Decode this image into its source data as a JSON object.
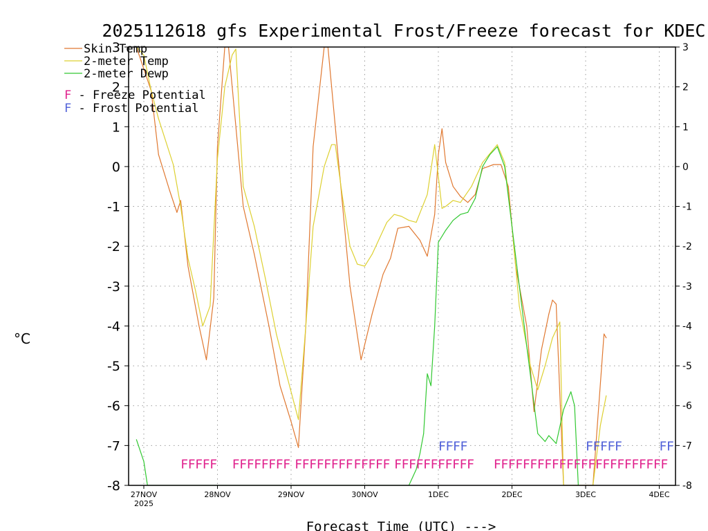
{
  "title": "2025112618 gfs Experimental Frost/Freeze forecast for KDEC",
  "chart_data": {
    "type": "line",
    "title": "2025112618 gfs Experimental Frost/Freeze forecast for KDEC",
    "ylabel": "°C",
    "xlabel": "Forecast Time (UTC) --->",
    "ylim": [
      -8,
      3
    ],
    "xlim": [
      -0.1,
      7.2
    ],
    "x_unit": "days since 27NOV 00Z",
    "y_ticks": [
      "-8",
      "-7",
      "-6",
      "-5",
      "-4",
      "-3",
      "-2",
      "-1",
      "0",
      "1",
      "2",
      "3"
    ],
    "x_ticks": [
      {
        "x": 0,
        "label": "27NOV",
        "sublabel": "2025"
      },
      {
        "x": 1,
        "label": "28NOV",
        "sublabel": ""
      },
      {
        "x": 2,
        "label": "29NOV",
        "sublabel": ""
      },
      {
        "x": 3,
        "label": "30NOV",
        "sublabel": ""
      },
      {
        "x": 4,
        "label": "1DEC",
        "sublabel": ""
      },
      {
        "x": 5,
        "label": "2DEC",
        "sublabel": ""
      },
      {
        "x": 6,
        "label": "3DEC",
        "sublabel": ""
      },
      {
        "x": 7,
        "label": "4DEC",
        "sublabel": ""
      }
    ],
    "series": [
      {
        "name": "Skin Temp",
        "color": "#e07830",
        "points": [
          [
            -0.1,
            3.0
          ],
          [
            0.1,
            1.9
          ],
          [
            0.2,
            0.3
          ],
          [
            0.35,
            -0.6
          ],
          [
            0.45,
            -1.15
          ],
          [
            0.5,
            -0.85
          ],
          [
            0.6,
            -2.5
          ],
          [
            0.75,
            -4.0
          ],
          [
            0.85,
            -4.85
          ],
          [
            0.95,
            -3.3
          ],
          [
            1.0,
            0.5
          ],
          [
            1.1,
            3.0
          ],
          [
            1.15,
            3.0
          ],
          [
            1.35,
            -1.0
          ],
          [
            1.5,
            -2.2
          ],
          [
            1.7,
            -4.0
          ],
          [
            1.85,
            -5.5
          ],
          [
            2.0,
            -6.4
          ],
          [
            2.1,
            -7.05
          ],
          [
            2.2,
            -4.0
          ],
          [
            2.3,
            0.5
          ],
          [
            2.45,
            3.0
          ],
          [
            2.5,
            3.0
          ],
          [
            2.7,
            -1.0
          ],
          [
            2.8,
            -3.0
          ],
          [
            2.95,
            -4.85
          ],
          [
            3.1,
            -3.7
          ],
          [
            3.25,
            -2.7
          ],
          [
            3.35,
            -2.3
          ],
          [
            3.45,
            -1.55
          ],
          [
            3.6,
            -1.5
          ],
          [
            3.75,
            -1.85
          ],
          [
            3.85,
            -2.25
          ],
          [
            3.95,
            -1.2
          ],
          [
            4.0,
            0.3
          ],
          [
            4.05,
            0.95
          ],
          [
            4.1,
            0.1
          ],
          [
            4.2,
            -0.5
          ],
          [
            4.3,
            -0.75
          ],
          [
            4.4,
            -0.9
          ],
          [
            4.5,
            -0.7
          ],
          [
            4.6,
            -0.05
          ],
          [
            4.75,
            0.05
          ],
          [
            4.85,
            0.05
          ],
          [
            4.95,
            -0.5
          ],
          [
            5.05,
            -2.5
          ],
          [
            5.2,
            -4.0
          ],
          [
            5.3,
            -6.15
          ],
          [
            5.4,
            -4.6
          ],
          [
            5.5,
            -3.7
          ],
          [
            5.55,
            -3.35
          ],
          [
            5.6,
            -3.45
          ],
          [
            5.7,
            -8.0
          ],
          [
            6.1,
            -8.0
          ],
          [
            6.25,
            -4.2
          ],
          [
            6.28,
            -4.3
          ]
        ]
      },
      {
        "name": "2-meter Temp",
        "color": "#ddd030",
        "points": [
          [
            -0.1,
            3.0
          ],
          [
            0.0,
            2.8
          ],
          [
            0.1,
            1.9
          ],
          [
            0.2,
            1.2
          ],
          [
            0.4,
            0.05
          ],
          [
            0.5,
            -1.0
          ],
          [
            0.6,
            -2.3
          ],
          [
            0.7,
            -3.1
          ],
          [
            0.8,
            -4.0
          ],
          [
            0.9,
            -3.5
          ],
          [
            1.0,
            0.2
          ],
          [
            1.1,
            2.0
          ],
          [
            1.2,
            2.8
          ],
          [
            1.25,
            2.95
          ],
          [
            1.35,
            -0.5
          ],
          [
            1.5,
            -1.5
          ],
          [
            1.65,
            -2.8
          ],
          [
            1.8,
            -4.2
          ],
          [
            1.95,
            -5.3
          ],
          [
            2.1,
            -6.35
          ],
          [
            2.2,
            -4.0
          ],
          [
            2.3,
            -1.5
          ],
          [
            2.45,
            0.0
          ],
          [
            2.55,
            0.55
          ],
          [
            2.6,
            0.55
          ],
          [
            2.7,
            -0.8
          ],
          [
            2.8,
            -2.0
          ],
          [
            2.9,
            -2.45
          ],
          [
            3.0,
            -2.5
          ],
          [
            3.1,
            -2.2
          ],
          [
            3.3,
            -1.4
          ],
          [
            3.4,
            -1.2
          ],
          [
            3.5,
            -1.25
          ],
          [
            3.6,
            -1.35
          ],
          [
            3.7,
            -1.4
          ],
          [
            3.85,
            -0.7
          ],
          [
            3.95,
            0.55
          ],
          [
            4.05,
            -1.05
          ],
          [
            4.1,
            -1.0
          ],
          [
            4.2,
            -0.85
          ],
          [
            4.3,
            -0.9
          ],
          [
            4.45,
            -0.5
          ],
          [
            4.6,
            0.1
          ],
          [
            4.8,
            0.55
          ],
          [
            4.9,
            0.1
          ],
          [
            5.0,
            -1.5
          ],
          [
            5.1,
            -3.5
          ],
          [
            5.25,
            -5.0
          ],
          [
            5.35,
            -5.6
          ],
          [
            5.45,
            -5.0
          ],
          [
            5.55,
            -4.3
          ],
          [
            5.65,
            -3.9
          ],
          [
            5.7,
            -8.0
          ],
          [
            6.1,
            -8.0
          ],
          [
            6.2,
            -6.5
          ],
          [
            6.28,
            -5.75
          ]
        ]
      },
      {
        "name": "2-meter Dewp",
        "color": "#30c830",
        "points": [
          [
            -0.1,
            -6.85
          ],
          [
            0.0,
            -7.4
          ],
          [
            0.05,
            -8.0
          ],
          [
            3.6,
            -8.0
          ],
          [
            3.65,
            -7.8
          ],
          [
            3.7,
            -7.6
          ],
          [
            3.75,
            -7.2
          ],
          [
            3.8,
            -6.7
          ],
          [
            3.85,
            -5.2
          ],
          [
            3.9,
            -5.5
          ],
          [
            3.95,
            -4.0
          ],
          [
            4.0,
            -1.9
          ],
          [
            4.1,
            -1.6
          ],
          [
            4.2,
            -1.35
          ],
          [
            4.3,
            -1.2
          ],
          [
            4.4,
            -1.15
          ],
          [
            4.5,
            -0.8
          ],
          [
            4.6,
            0.0
          ],
          [
            4.7,
            0.3
          ],
          [
            4.8,
            0.5
          ],
          [
            4.9,
            0.0
          ],
          [
            5.0,
            -1.5
          ],
          [
            5.1,
            -3.0
          ],
          [
            5.2,
            -4.5
          ],
          [
            5.35,
            -6.7
          ],
          [
            5.45,
            -6.9
          ],
          [
            5.5,
            -6.75
          ],
          [
            5.6,
            -6.95
          ],
          [
            5.7,
            -6.1
          ],
          [
            5.8,
            -5.65
          ],
          [
            5.85,
            -6.0
          ],
          [
            5.9,
            -8.0
          ]
        ]
      }
    ],
    "legend": [
      {
        "label": "Skin Temp",
        "color": "#e07830",
        "marker": "line"
      },
      {
        "label": "2-meter Temp",
        "color": "#ddd030",
        "marker": "line"
      },
      {
        "label": "2-meter Dewp",
        "color": "#30c830",
        "marker": "line"
      },
      {
        "label": "F - Freeze Potential",
        "color": "#e0208c",
        "marker": "F"
      },
      {
        "label": "F - Frost Potential",
        "color": "#5060d8",
        "marker": "F"
      }
    ],
    "freeze_markers": {
      "color": "#e0208c",
      "y": -7.45,
      "ranges": [
        [
          0.5,
          0.9
        ],
        [
          1.2,
          1.9
        ],
        [
          2.05,
          2.8
        ],
        [
          2.85,
          3.25
        ],
        [
          3.4,
          4.45
        ],
        [
          4.75,
          7.1
        ]
      ]
    },
    "frost_markers": {
      "color": "#5060d8",
      "y": -7.0,
      "ranges": [
        [
          4.0,
          4.35
        ],
        [
          6.0,
          6.45
        ],
        [
          7.0,
          7.2
        ]
      ]
    }
  }
}
